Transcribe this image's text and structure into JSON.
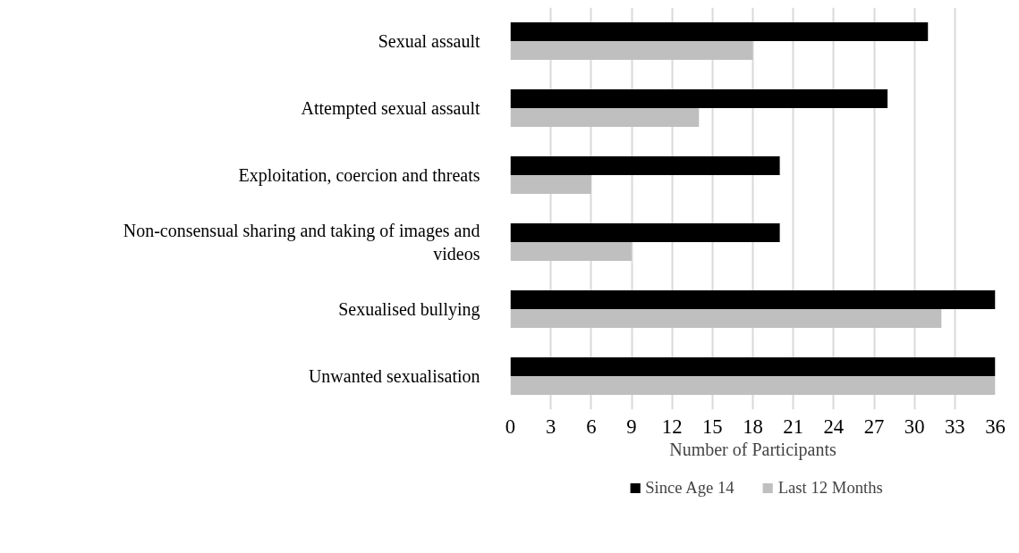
{
  "chart_data": {
    "type": "bar",
    "orientation": "horizontal",
    "categories": [
      "Sexual assault",
      "Attempted sexual assault",
      "Exploitation, coercion and threats",
      "Non-consensual sharing and taking of images and videos",
      "Sexualised bullying",
      "Unwanted sexualisation"
    ],
    "series": [
      {
        "name": "Since Age 14",
        "color": "#000000",
        "values": [
          31,
          28,
          20,
          20,
          36,
          36
        ]
      },
      {
        "name": "Last 12 Months",
        "color": "#bfbfbf",
        "values": [
          18,
          14,
          6,
          9,
          32,
          36
        ]
      }
    ],
    "xlabel": "Number of Participants",
    "xlim": [
      0,
      36
    ],
    "xticks": [
      0,
      3,
      6,
      9,
      12,
      15,
      18,
      21,
      24,
      27,
      30,
      33,
      36
    ],
    "grid": "x",
    "legend": "bottom"
  }
}
